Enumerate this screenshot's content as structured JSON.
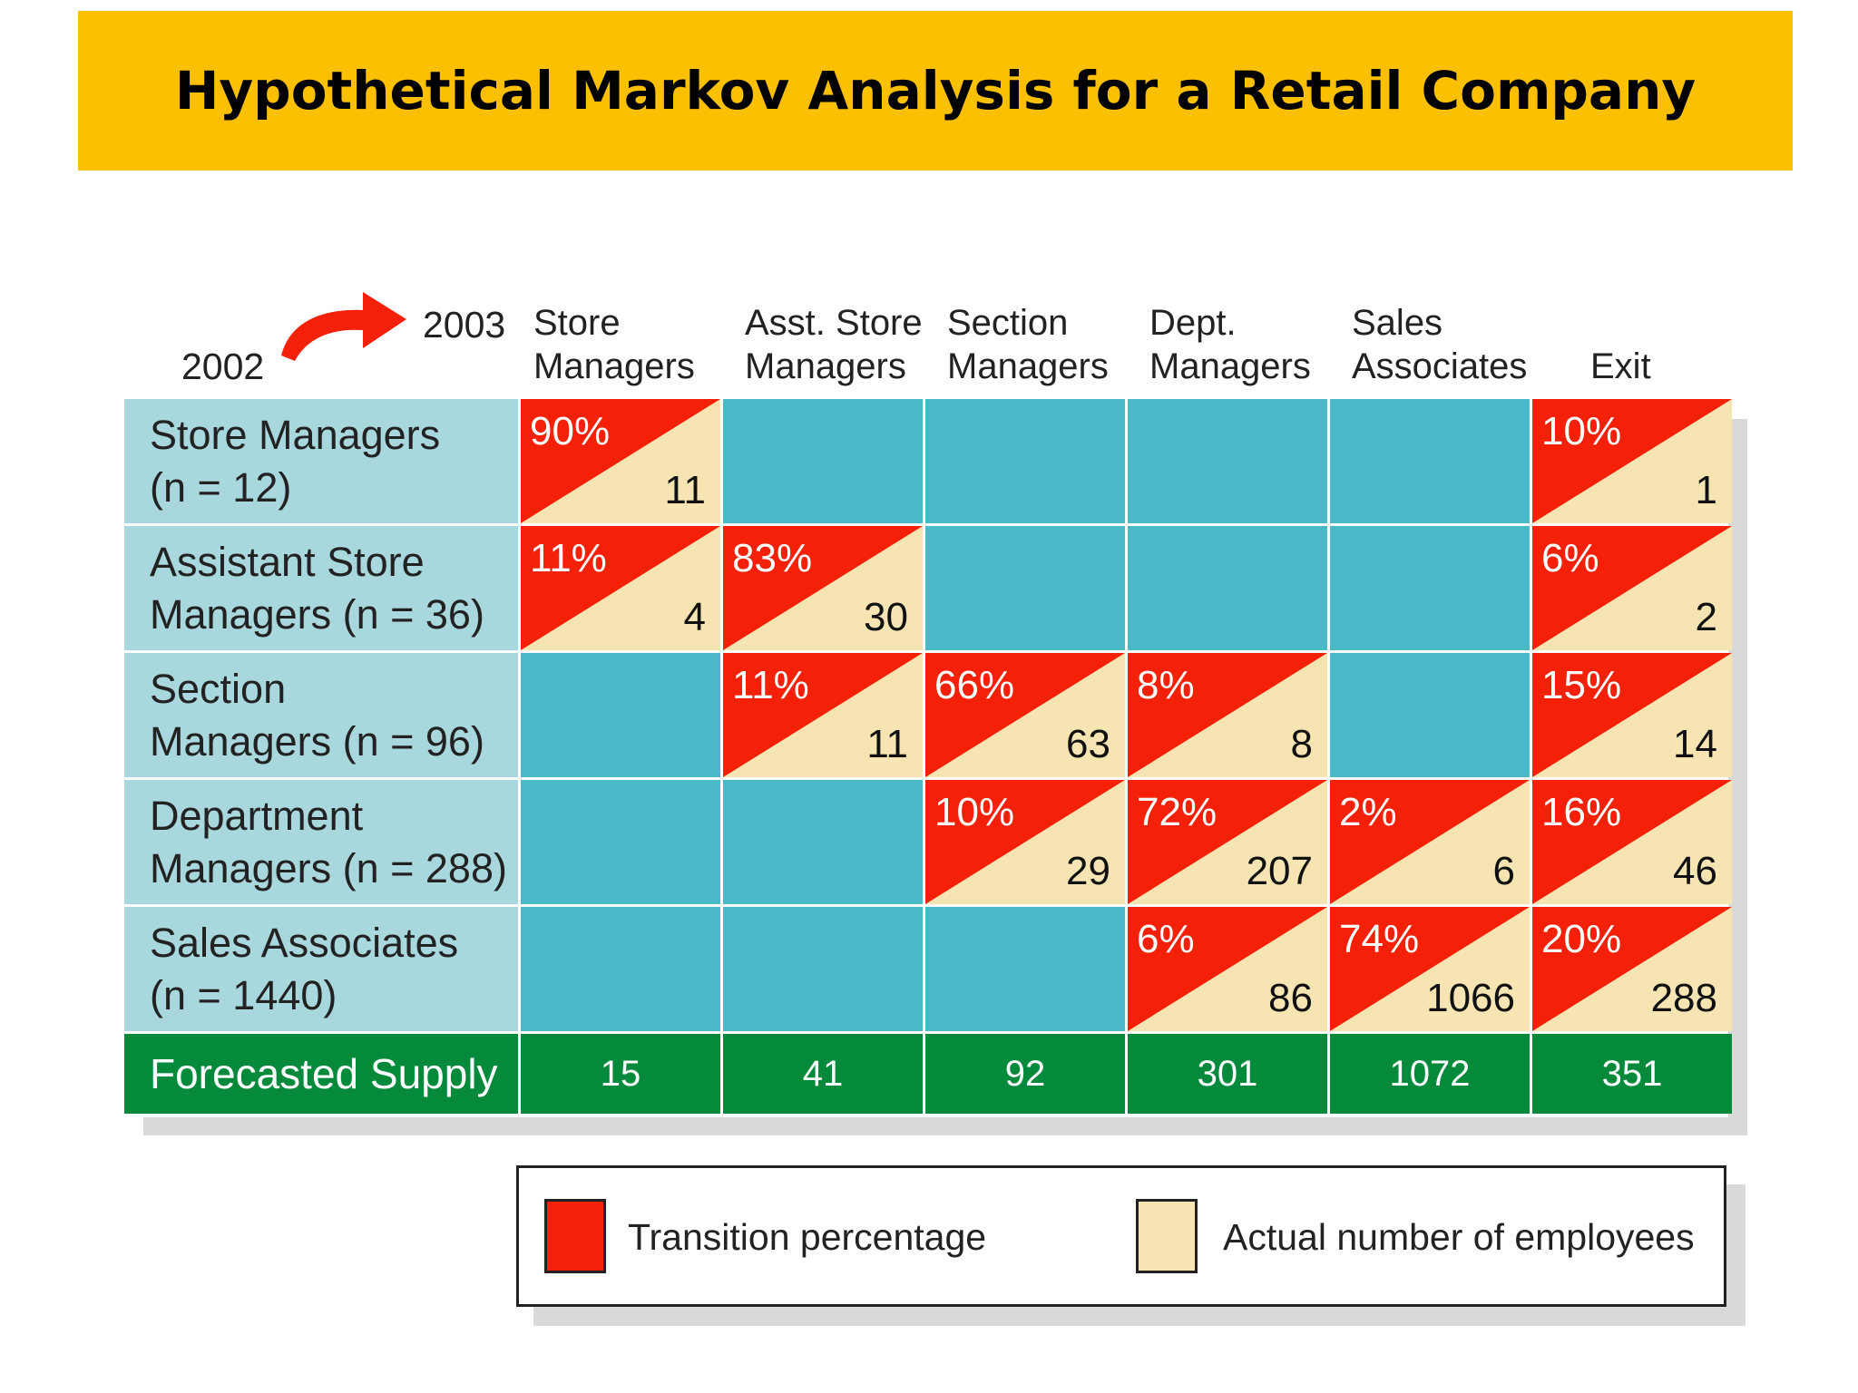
{
  "title": "Hypothetical Markov Analysis for a Retail Company",
  "year_from": "2002",
  "year_to": "2003",
  "columns": [
    {
      "line1": "Store",
      "line2": "Managers"
    },
    {
      "line1": "Asst. Store",
      "line2": "Managers"
    },
    {
      "line1": "Section",
      "line2": "Managers"
    },
    {
      "line1": "Dept.",
      "line2": "Managers"
    },
    {
      "line1": "Sales",
      "line2": "Associates"
    },
    {
      "line1": "",
      "line2": "Exit"
    }
  ],
  "rows": [
    {
      "line1": "Store Managers",
      "line2": "(n = 12)",
      "cells": [
        {
          "pct": "90%",
          "num": "11"
        },
        null,
        null,
        null,
        null,
        {
          "pct": "10%",
          "num": "1"
        }
      ]
    },
    {
      "line1": "Assistant Store",
      "line2": "Managers (n = 36)",
      "cells": [
        {
          "pct": "11%",
          "num": "4"
        },
        {
          "pct": "83%",
          "num": "30"
        },
        null,
        null,
        null,
        {
          "pct": "6%",
          "num": "2"
        }
      ]
    },
    {
      "line1": "Section",
      "line2": "Managers (n = 96)",
      "cells": [
        null,
        {
          "pct": "11%",
          "num": "11"
        },
        {
          "pct": "66%",
          "num": "63"
        },
        {
          "pct": "8%",
          "num": "8"
        },
        null,
        {
          "pct": "15%",
          "num": "14"
        }
      ]
    },
    {
      "line1": "Department",
      "line2": "Managers (n = 288)",
      "cells": [
        null,
        null,
        {
          "pct": "10%",
          "num": "29"
        },
        {
          "pct": "72%",
          "num": "207"
        },
        {
          "pct": "2%",
          "num": "6"
        },
        {
          "pct": "16%",
          "num": "46"
        }
      ]
    },
    {
      "line1": "Sales Associates",
      "line2": "(n = 1440)",
      "cells": [
        null,
        null,
        null,
        {
          "pct": "6%",
          "num": "86"
        },
        {
          "pct": "74%",
          "num": "1066"
        },
        {
          "pct": "20%",
          "num": "288"
        }
      ]
    }
  ],
  "supply_label": "Forecasted Supply",
  "supply_values": [
    "15",
    "41",
    "92",
    "301",
    "1072",
    "351"
  ],
  "legend": {
    "transition": "Transition percentage",
    "actual": "Actual number of employees"
  },
  "colors": {
    "title_bg": "#FBC002",
    "transition": "#F52008",
    "actual": "#F6E5B2",
    "empty_cell": "#4AB8C6",
    "row_label_bg": "#A8D8DE",
    "supply_bg": "#058A3C"
  }
}
